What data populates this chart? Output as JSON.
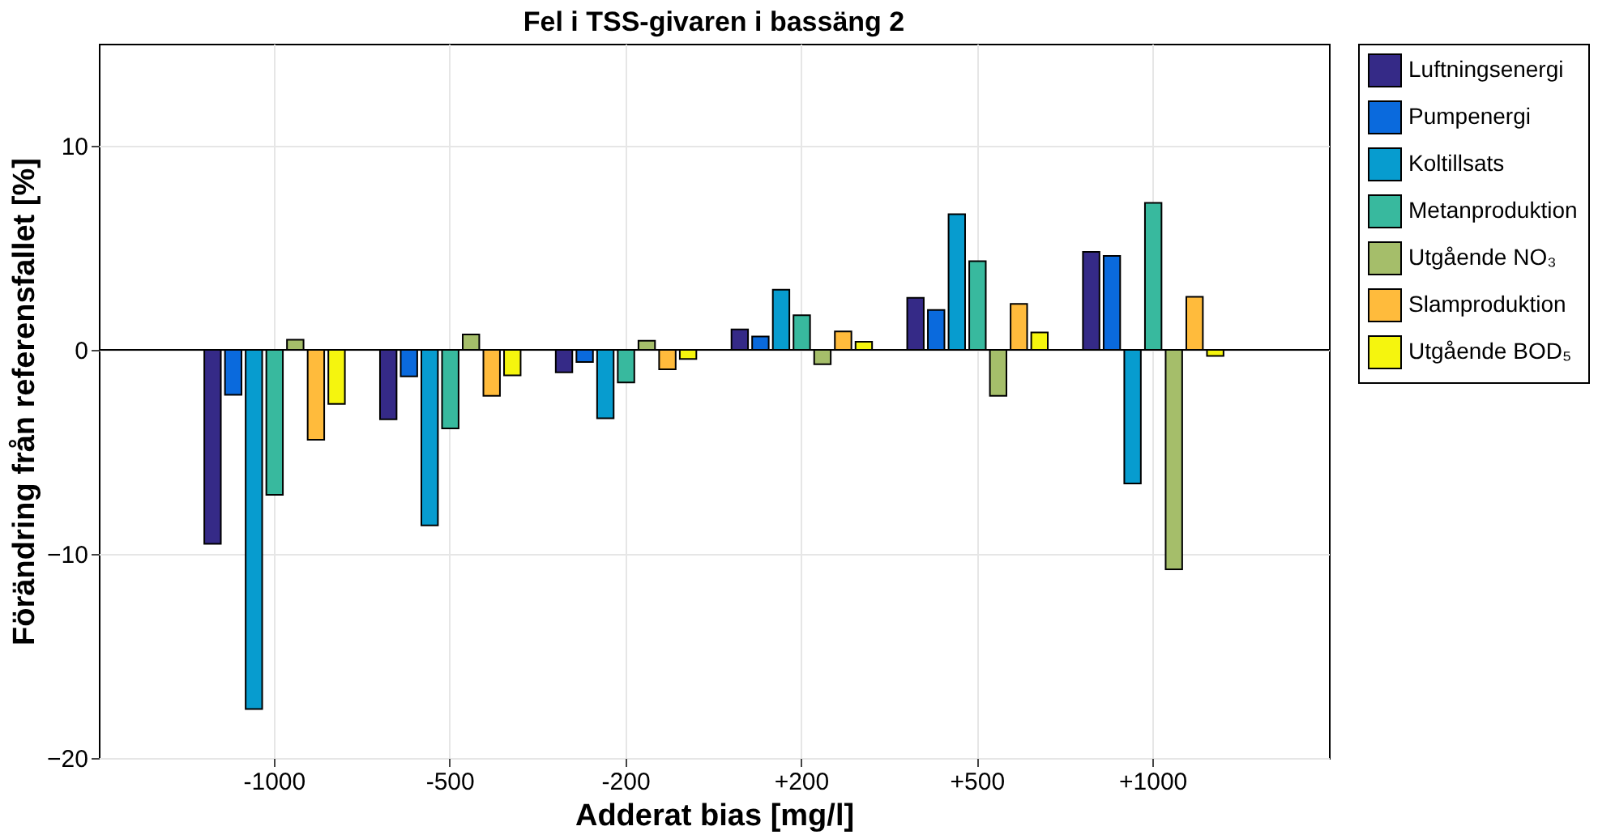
{
  "chart_data": {
    "type": "bar",
    "title": "Fel i TSS-givaren i bassäng 2",
    "xlabel": "Adderat bias [mg/l]",
    "ylabel": "Förändring från referensfallet [%]",
    "categories": [
      "-1000",
      "-500",
      "-200",
      "+200",
      "+500",
      "+1000"
    ],
    "series": [
      {
        "name": "Luftningsenergi",
        "color": "#352a87",
        "values": [
          -9.5,
          -3.4,
          -1.1,
          1.0,
          2.55,
          4.8
        ]
      },
      {
        "name": "Pumpenergi",
        "color": "#0a6add",
        "values": [
          -2.2,
          -1.3,
          -0.6,
          0.65,
          1.95,
          4.6
        ]
      },
      {
        "name": "Koltillsats",
        "color": "#079ccf",
        "values": [
          -17.6,
          -8.6,
          -3.35,
          2.95,
          6.65,
          -6.55
        ]
      },
      {
        "name": "Metanproduktion",
        "color": "#38b99e",
        "values": [
          -7.1,
          -3.85,
          -1.6,
          1.7,
          4.35,
          7.2
        ]
      },
      {
        "name": "Utgående NO₃",
        "color": "#a5be6a",
        "values": [
          0.5,
          0.75,
          0.45,
          -0.7,
          -2.25,
          -10.75
        ]
      },
      {
        "name": "Slamproduktion",
        "color": "#ffbb3c",
        "values": [
          -4.4,
          -2.25,
          -0.95,
          0.9,
          2.25,
          2.6
        ]
      },
      {
        "name": "Utgående BOD₅",
        "color": "#f5f50e",
        "values": [
          -2.65,
          -1.25,
          -0.45,
          0.4,
          0.85,
          -0.3
        ]
      }
    ],
    "ylim": [
      -20,
      15
    ],
    "yticks": [
      -20,
      -10,
      0,
      10
    ],
    "grid": true,
    "legend": "top right",
    "ref_lines": [
      {
        "axis": "y",
        "value": 0,
        "color": "#000000"
      }
    ]
  }
}
